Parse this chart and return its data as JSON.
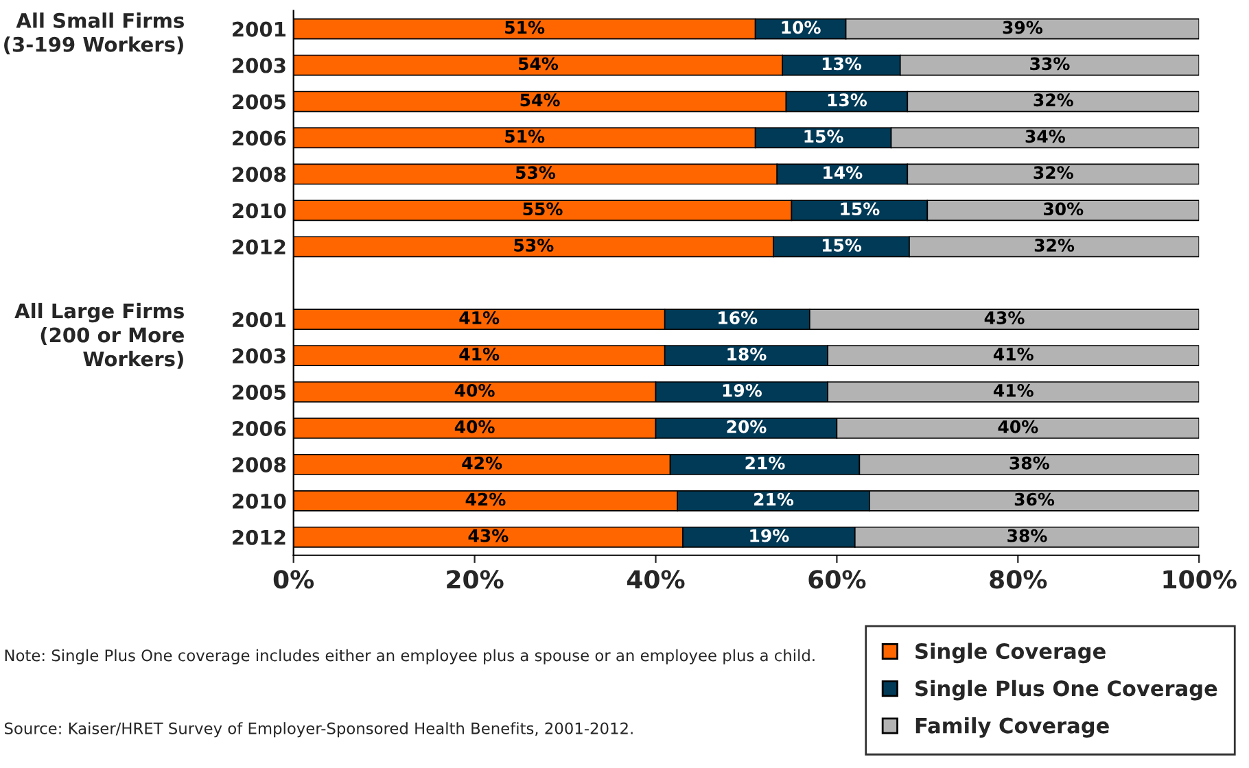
{
  "chart_data": {
    "type": "bar",
    "orientation": "horizontal",
    "stacked": true,
    "categories": [
      "2001",
      "2003",
      "2005",
      "2006",
      "2008",
      "2010",
      "2012",
      null,
      "2001",
      "2003",
      "2005",
      "2006",
      "2008",
      "2010",
      "2012"
    ],
    "series": [
      {
        "name": "Single Coverage",
        "color": "#ff6600",
        "values": [
          51,
          54,
          54.4,
          51,
          53.4,
          55,
          53,
          null,
          41,
          41,
          40,
          40,
          41.6,
          42.4,
          43
        ],
        "value_labels": [
          "51%",
          "54%",
          "54%",
          "51%",
          "53%",
          "55%",
          "53%",
          null,
          "41%",
          "41%",
          "40%",
          "40%",
          "42%",
          "42%",
          "43%"
        ]
      },
      {
        "name": "Single Plus One Coverage",
        "color": "#003a57",
        "values": [
          10,
          13,
          13.4,
          15,
          14.4,
          15,
          15,
          null,
          16,
          18,
          19,
          20,
          20.9,
          21.2,
          19
        ],
        "value_labels": [
          "10%",
          "13%",
          "13%",
          "15%",
          "14%",
          "15%",
          "15%",
          null,
          "16%",
          "18%",
          "19%",
          "20%",
          "21%",
          "21%",
          "19%"
        ]
      },
      {
        "name": "Family Coverage",
        "color": "#b3b3b3",
        "values": [
          39,
          33,
          32.2,
          34,
          32.2,
          30,
          32,
          null,
          43,
          41,
          41,
          40,
          37.5,
          36.4,
          38
        ],
        "value_labels": [
          "39%",
          "33%",
          "32%",
          "34%",
          "32%",
          "30%",
          "32%",
          null,
          "43%",
          "41%",
          "41%",
          "40%",
          "38%",
          "36%",
          "38%"
        ]
      }
    ],
    "xlim": [
      0,
      100
    ],
    "xticks": [
      {
        "value": 0,
        "label": "0%"
      },
      {
        "value": 20,
        "label": "20%"
      },
      {
        "value": 40,
        "label": "40%"
      },
      {
        "value": 60,
        "label": "60%"
      },
      {
        "value": 80,
        "label": "80%"
      },
      {
        "value": 100,
        "label": "100%"
      }
    ],
    "grid": false,
    "legend": "bottom right",
    "annotations": [
      "All Small Firms\n(3-199 Workers)",
      "All Large Firms\n(200 or More\nWorkers)",
      "Note: Single Plus One coverage includes either an employee plus a spouse or an employee plus a child.",
      "Source: Kaiser/HRET Survey of Employer-Sponsored Health Benefits, 2001-2012."
    ]
  }
}
